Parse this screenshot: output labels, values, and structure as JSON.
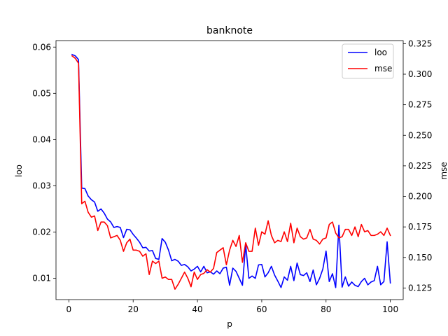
{
  "chart_data": {
    "type": "line",
    "title": "banknote",
    "xlabel": "p",
    "ylabel_left": "loo",
    "ylabel_right": "mse",
    "xlim": [
      -4,
      104
    ],
    "ylim_left": [
      0.0054,
      0.0614
    ],
    "ylim_right": [
      0.1155,
      0.3275
    ],
    "x_ticks": [
      0,
      20,
      40,
      60,
      80,
      100
    ],
    "y_ticks_left": [
      0.01,
      0.02,
      0.03,
      0.04,
      0.05,
      0.06
    ],
    "y_ticks_left_labels": [
      "0.01",
      "0.02",
      "0.03",
      "0.04",
      "0.05",
      "0.06"
    ],
    "y_ticks_right": [
      0.125,
      0.15,
      0.175,
      0.2,
      0.225,
      0.25,
      0.275,
      0.3,
      0.325
    ],
    "y_ticks_right_labels": [
      "0.125",
      "0.150",
      "0.175",
      "0.200",
      "0.225",
      "0.250",
      "0.275",
      "0.300",
      "0.325"
    ],
    "grid": false,
    "legend_position": "top-right",
    "x": [
      1,
      2,
      3,
      4,
      5,
      6,
      7,
      8,
      9,
      10,
      11,
      12,
      13,
      14,
      15,
      16,
      17,
      18,
      19,
      20,
      21,
      22,
      23,
      24,
      25,
      26,
      27,
      28,
      29,
      30,
      31,
      32,
      33,
      34,
      35,
      36,
      37,
      38,
      39,
      40,
      41,
      42,
      43,
      44,
      45,
      46,
      47,
      48,
      49,
      50,
      51,
      52,
      53,
      54,
      55,
      56,
      57,
      58,
      59,
      60,
      61,
      62,
      63,
      64,
      65,
      66,
      67,
      68,
      69,
      70,
      71,
      72,
      73,
      74,
      75,
      76,
      77,
      78,
      79,
      80,
      81,
      82,
      83,
      84,
      85,
      86,
      87,
      88,
      89,
      90,
      91,
      92,
      93,
      94,
      95,
      96,
      97,
      98,
      99,
      100
    ],
    "series": [
      {
        "name": "loo",
        "axis": "left",
        "color": "#0000ff",
        "values": [
          0.0584,
          0.0581,
          0.0573,
          0.0295,
          0.0294,
          0.0278,
          0.027,
          0.0265,
          0.0245,
          0.025,
          0.0241,
          0.0228,
          0.0222,
          0.021,
          0.0212,
          0.021,
          0.0188,
          0.0206,
          0.0205,
          0.0195,
          0.0187,
          0.0178,
          0.0166,
          0.0167,
          0.0159,
          0.016,
          0.0143,
          0.0141,
          0.0186,
          0.0178,
          0.0161,
          0.0138,
          0.0141,
          0.0137,
          0.0128,
          0.013,
          0.0125,
          0.0116,
          0.012,
          0.0126,
          0.0114,
          0.0126,
          0.0112,
          0.0114,
          0.0109,
          0.0116,
          0.011,
          0.0122,
          0.0124,
          0.0085,
          0.0122,
          0.0115,
          0.01,
          0.0085,
          0.0173,
          0.01,
          0.0105,
          0.01,
          0.0129,
          0.013,
          0.0103,
          0.0112,
          0.0126,
          0.0107,
          0.0094,
          0.008,
          0.0103,
          0.0096,
          0.0126,
          0.0095,
          0.0133,
          0.0108,
          0.0106,
          0.0112,
          0.0093,
          0.0118,
          0.0086,
          0.01,
          0.012,
          0.0159,
          0.0093,
          0.011,
          0.008,
          0.0215,
          0.0081,
          0.0103,
          0.0083,
          0.0092,
          0.0085,
          0.0082,
          0.0093,
          0.01,
          0.0086,
          0.0092,
          0.0095,
          0.0126,
          0.0086,
          0.0093,
          0.0179,
          0.009
        ]
      },
      {
        "name": "mse",
        "axis": "right",
        "color": "#ff0000",
        "values": [
          0.315,
          0.313,
          0.309,
          0.194,
          0.196,
          0.187,
          0.183,
          0.184,
          0.172,
          0.179,
          0.179,
          0.176,
          0.166,
          0.167,
          0.168,
          0.164,
          0.155,
          0.162,
          0.165,
          0.156,
          0.156,
          0.155,
          0.151,
          0.153,
          0.136,
          0.147,
          0.145,
          0.147,
          0.133,
          0.134,
          0.132,
          0.132,
          0.124,
          0.128,
          0.133,
          0.138,
          0.133,
          0.126,
          0.138,
          0.132,
          0.136,
          0.137,
          0.14,
          0.138,
          0.141,
          0.154,
          0.156,
          0.158,
          0.144,
          0.156,
          0.164,
          0.159,
          0.168,
          0.146,
          0.162,
          0.155,
          0.155,
          0.174,
          0.16,
          0.171,
          0.169,
          0.18,
          0.168,
          0.162,
          0.164,
          0.163,
          0.171,
          0.163,
          0.178,
          0.162,
          0.174,
          0.167,
          0.165,
          0.166,
          0.173,
          0.165,
          0.164,
          0.161,
          0.165,
          0.166,
          0.177,
          0.179,
          0.17,
          0.166,
          0.167,
          0.173,
          0.173,
          0.168,
          0.175,
          0.167,
          0.177,
          0.171,
          0.172,
          0.168,
          0.168,
          0.169,
          0.171,
          0.168,
          0.174,
          0.168
        ]
      }
    ]
  }
}
